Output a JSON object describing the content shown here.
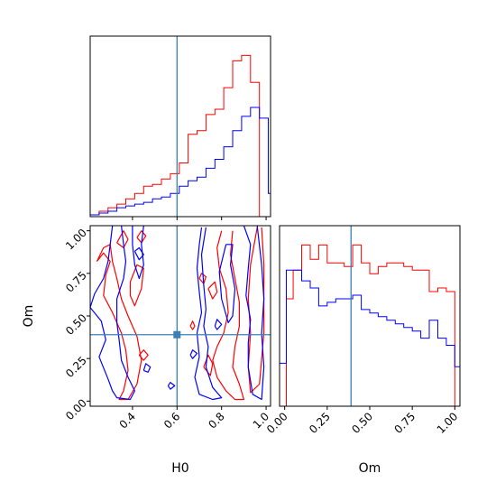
{
  "chart_data": {
    "type": "corner",
    "parameters": [
      "H0",
      "Om"
    ],
    "truths": {
      "H0": 0.6,
      "Om": 0.39
    },
    "colors": {
      "series_a": "#ff0000",
      "series_b": "#0000ff",
      "truth": "#3b7fb3"
    },
    "xlabels": {
      "bottom_left": "H0",
      "bottom_right": "Om"
    },
    "ylabels": {
      "bottom_left": "Om"
    },
    "ticks": {
      "H0": [
        {
          "value": 0.4,
          "label": "0.4"
        },
        {
          "value": 0.6,
          "label": "0.6"
        },
        {
          "value": 0.8,
          "label": "0.8"
        },
        {
          "value": 1.0,
          "label": "1.0"
        }
      ],
      "Om": [
        {
          "value": 0.0,
          "label": "0.00"
        },
        {
          "value": 0.25,
          "label": "0.25"
        },
        {
          "value": 0.5,
          "label": "0.50"
        },
        {
          "value": 0.75,
          "label": "0.75"
        },
        {
          "value": 1.0,
          "label": "1.00"
        }
      ]
    },
    "ranges": {
      "H0": [
        0.21,
        1.02
      ],
      "Om": [
        -0.03,
        1.03
      ]
    },
    "hist_H0": {
      "bin_edges": [
        0.21,
        0.25,
        0.29,
        0.33,
        0.37,
        0.41,
        0.45,
        0.49,
        0.53,
        0.57,
        0.61,
        0.65,
        0.69,
        0.73,
        0.77,
        0.81,
        0.85,
        0.89,
        0.93,
        0.97,
        1.01,
        1.02
      ],
      "series_a": [
        1,
        3,
        5,
        7,
        10,
        13,
        17,
        18,
        21,
        24,
        30,
        46,
        48,
        57,
        60,
        72,
        87,
        90,
        75,
        0,
        0
      ],
      "series_b": [
        1,
        2,
        3,
        5,
        6,
        7,
        8,
        10,
        11,
        13,
        17,
        20,
        22,
        27,
        32,
        39,
        48,
        56,
        61,
        55,
        13
      ]
    },
    "hist_Om": {
      "bin_edges": [
        -0.03,
        0.01,
        0.05,
        0.1,
        0.15,
        0.2,
        0.25,
        0.3,
        0.35,
        0.4,
        0.45,
        0.5,
        0.55,
        0.6,
        0.65,
        0.7,
        0.75,
        0.8,
        0.85,
        0.9,
        0.95,
        1.0,
        1.03
      ],
      "series_a": [
        0,
        30,
        38,
        45,
        41,
        45,
        40,
        40,
        39,
        45,
        40,
        37,
        39,
        40,
        40,
        39,
        38,
        38,
        32,
        33,
        32,
        0
      ],
      "series_b": [
        12,
        38,
        38,
        35,
        33,
        28,
        29,
        30,
        30,
        31,
        27,
        26,
        25,
        24,
        23,
        22,
        21,
        19,
        24,
        19,
        17,
        11
      ]
    },
    "contours_a": [
      [
        [
          0.24,
          0.82
        ],
        [
          0.27,
          0.87
        ],
        [
          0.3,
          0.82
        ],
        [
          0.28,
          0.74
        ],
        [
          0.27,
          0.62
        ],
        [
          0.31,
          0.52
        ],
        [
          0.35,
          0.4
        ],
        [
          0.37,
          0.3
        ],
        [
          0.38,
          0.18
        ],
        [
          0.36,
          0.06
        ],
        [
          0.34,
          0.01
        ],
        [
          0.38,
          0.01
        ],
        [
          0.42,
          0.1
        ],
        [
          0.44,
          0.24
        ],
        [
          0.42,
          0.38
        ],
        [
          0.38,
          0.5
        ],
        [
          0.35,
          0.6
        ],
        [
          0.33,
          0.72
        ],
        [
          0.31,
          0.82
        ],
        [
          0.3,
          0.92
        ],
        [
          0.27,
          0.9
        ],
        [
          0.24,
          0.82
        ]
      ],
      [
        [
          0.39,
          0.7
        ],
        [
          0.42,
          0.8
        ],
        [
          0.45,
          0.78
        ],
        [
          0.44,
          0.66
        ],
        [
          0.41,
          0.56
        ],
        [
          0.39,
          0.62
        ],
        [
          0.39,
          0.7
        ]
      ],
      [
        [
          0.33,
          0.93
        ],
        [
          0.36,
          1.0
        ],
        [
          0.38,
          0.95
        ],
        [
          0.36,
          0.9
        ],
        [
          0.33,
          0.93
        ]
      ],
      [
        [
          0.42,
          0.96
        ],
        [
          0.44,
          1.0
        ],
        [
          0.46,
          0.97
        ],
        [
          0.44,
          0.93
        ],
        [
          0.42,
          0.96
        ]
      ],
      [
        [
          0.43,
          0.27
        ],
        [
          0.45,
          0.3
        ],
        [
          0.47,
          0.27
        ],
        [
          0.45,
          0.24
        ],
        [
          0.43,
          0.27
        ]
      ],
      [
        [
          0.8,
          1.0
        ],
        [
          0.78,
          0.9
        ],
        [
          0.79,
          0.78
        ],
        [
          0.82,
          0.66
        ],
        [
          0.83,
          0.52
        ],
        [
          0.81,
          0.4
        ],
        [
          0.78,
          0.32
        ],
        [
          0.76,
          0.24
        ],
        [
          0.78,
          0.14
        ],
        [
          0.82,
          0.06
        ],
        [
          0.86,
          0.01
        ],
        [
          0.9,
          0.01
        ],
        [
          0.88,
          0.1
        ],
        [
          0.85,
          0.2
        ],
        [
          0.86,
          0.32
        ],
        [
          0.88,
          0.44
        ],
        [
          0.88,
          0.58
        ],
        [
          0.86,
          0.72
        ],
        [
          0.84,
          0.86
        ],
        [
          0.85,
          1.0
        ]
      ],
      [
        [
          0.96,
          1.02
        ],
        [
          0.93,
          0.8
        ],
        [
          0.92,
          0.6
        ],
        [
          0.93,
          0.4
        ],
        [
          0.92,
          0.2
        ],
        [
          0.93,
          0.05
        ],
        [
          0.97,
          0.1
        ],
        [
          0.99,
          0.4
        ],
        [
          0.99,
          0.8
        ],
        [
          0.98,
          1.02
        ]
      ],
      [
        [
          0.7,
          0.72
        ],
        [
          0.71,
          0.75
        ],
        [
          0.73,
          0.73
        ],
        [
          0.72,
          0.69
        ],
        [
          0.7,
          0.72
        ]
      ],
      [
        [
          0.74,
          0.66
        ],
        [
          0.77,
          0.7
        ],
        [
          0.78,
          0.64
        ],
        [
          0.76,
          0.6
        ],
        [
          0.74,
          0.66
        ]
      ],
      [
        [
          0.72,
          0.2
        ],
        [
          0.74,
          0.27
        ],
        [
          0.76,
          0.22
        ],
        [
          0.75,
          0.15
        ],
        [
          0.72,
          0.2
        ]
      ],
      [
        [
          0.66,
          0.44
        ],
        [
          0.67,
          0.47
        ],
        [
          0.68,
          0.44
        ],
        [
          0.67,
          0.42
        ],
        [
          0.66,
          0.44
        ]
      ]
    ],
    "contours_b": [
      [
        [
          0.31,
          1.03
        ],
        [
          0.3,
          0.92
        ],
        [
          0.29,
          0.82
        ],
        [
          0.27,
          0.72
        ],
        [
          0.23,
          0.63
        ],
        [
          0.21,
          0.55
        ],
        [
          0.26,
          0.47
        ],
        [
          0.28,
          0.36
        ],
        [
          0.25,
          0.26
        ],
        [
          0.29,
          0.13
        ],
        [
          0.31,
          0.06
        ],
        [
          0.33,
          0.02
        ],
        [
          0.39,
          0.01
        ],
        [
          0.41,
          0.06
        ],
        [
          0.38,
          0.14
        ],
        [
          0.35,
          0.24
        ],
        [
          0.34,
          0.36
        ],
        [
          0.33,
          0.46
        ],
        [
          0.33,
          0.6
        ],
        [
          0.36,
          0.72
        ],
        [
          0.37,
          0.82
        ],
        [
          0.36,
          0.92
        ],
        [
          0.35,
          1.03
        ]
      ],
      [
        [
          0.4,
          1.03
        ],
        [
          0.4,
          0.92
        ],
        [
          0.41,
          0.8
        ],
        [
          0.43,
          0.72
        ],
        [
          0.45,
          0.8
        ],
        [
          0.44,
          0.92
        ],
        [
          0.45,
          1.03
        ]
      ],
      [
        [
          0.41,
          0.88
        ],
        [
          0.43,
          0.83
        ],
        [
          0.45,
          0.86
        ],
        [
          0.43,
          0.9
        ],
        [
          0.41,
          0.88
        ]
      ],
      [
        [
          0.45,
          0.18
        ],
        [
          0.46,
          0.22
        ],
        [
          0.48,
          0.2
        ],
        [
          0.47,
          0.17
        ],
        [
          0.45,
          0.18
        ]
      ],
      [
        [
          0.73,
          1.02
        ],
        [
          0.71,
          0.86
        ],
        [
          0.72,
          0.68
        ],
        [
          0.73,
          0.54
        ],
        [
          0.72,
          0.44
        ],
        [
          0.74,
          0.32
        ],
        [
          0.73,
          0.2
        ],
        [
          0.76,
          0.08
        ],
        [
          0.8,
          0.02
        ],
        [
          0.76,
          0.01
        ],
        [
          0.7,
          0.04
        ],
        [
          0.68,
          0.14
        ],
        [
          0.7,
          0.26
        ],
        [
          0.69,
          0.4
        ],
        [
          0.71,
          0.52
        ],
        [
          0.7,
          0.64
        ],
        [
          0.69,
          0.78
        ],
        [
          0.7,
          0.92
        ],
        [
          0.71,
          1.02
        ]
      ],
      [
        [
          0.82,
          0.92
        ],
        [
          0.79,
          0.76
        ],
        [
          0.8,
          0.6
        ],
        [
          0.83,
          0.46
        ],
        [
          0.85,
          0.5
        ],
        [
          0.86,
          0.66
        ],
        [
          0.84,
          0.8
        ],
        [
          0.85,
          0.92
        ],
        [
          0.82,
          0.92
        ]
      ],
      [
        [
          0.9,
          1.03
        ],
        [
          0.93,
          0.92
        ],
        [
          0.92,
          0.78
        ],
        [
          0.91,
          0.62
        ],
        [
          0.93,
          0.48
        ],
        [
          0.92,
          0.34
        ],
        [
          0.92,
          0.2
        ],
        [
          0.94,
          0.04
        ],
        [
          0.98,
          0.01
        ],
        [
          0.99,
          0.2
        ],
        [
          0.98,
          0.4
        ],
        [
          0.99,
          0.6
        ],
        [
          0.98,
          0.8
        ],
        [
          0.96,
          1.03
        ]
      ],
      [
        [
          0.77,
          0.44
        ],
        [
          0.78,
          0.48
        ],
        [
          0.8,
          0.45
        ],
        [
          0.78,
          0.42
        ],
        [
          0.77,
          0.44
        ]
      ],
      [
        [
          0.66,
          0.27
        ],
        [
          0.67,
          0.3
        ],
        [
          0.69,
          0.28
        ],
        [
          0.67,
          0.25
        ],
        [
          0.66,
          0.27
        ]
      ],
      [
        [
          0.56,
          0.09
        ],
        [
          0.57,
          0.11
        ],
        [
          0.59,
          0.09
        ],
        [
          0.57,
          0.07
        ],
        [
          0.56,
          0.09
        ]
      ]
    ]
  }
}
